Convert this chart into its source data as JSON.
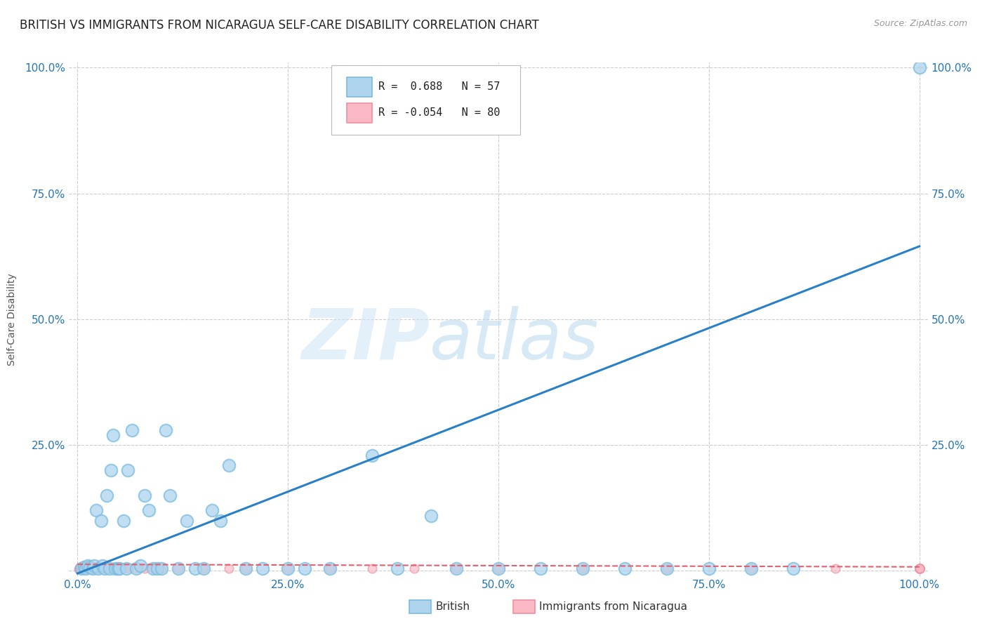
{
  "title": "BRITISH VS IMMIGRANTS FROM NICARAGUA SELF-CARE DISABILITY CORRELATION CHART",
  "source": "Source: ZipAtlas.com",
  "ylabel": "Self-Care Disability",
  "background_color": "#ffffff",
  "legend_r_british": "R =  0.688",
  "legend_n_british": "N = 57",
  "legend_r_nicaragua": "R = -0.054",
  "legend_n_nicaragua": "N = 80",
  "british_color_fill": "#aed4ee",
  "british_color_edge": "#7bbcde",
  "nicaragua_color_fill": "#f9b8c4",
  "nicaragua_color_edge": "#f090a0",
  "line_british_color": "#2980c8",
  "line_nicaragua_color": "#e06070",
  "british_points_x": [
    0.005,
    0.008,
    0.01,
    0.012,
    0.015,
    0.018,
    0.02,
    0.022,
    0.025,
    0.028,
    0.03,
    0.032,
    0.035,
    0.038,
    0.04,
    0.042,
    0.045,
    0.048,
    0.05,
    0.055,
    0.058,
    0.06,
    0.065,
    0.07,
    0.075,
    0.08,
    0.085,
    0.09,
    0.095,
    0.1,
    0.105,
    0.11,
    0.12,
    0.13,
    0.14,
    0.15,
    0.16,
    0.17,
    0.18,
    0.2,
    0.22,
    0.25,
    0.27,
    0.3,
    0.35,
    0.38,
    0.42,
    0.45,
    0.5,
    0.55,
    0.6,
    0.65,
    0.7,
    0.75,
    0.8,
    0.85,
    1.0
  ],
  "british_points_y": [
    0.005,
    0.008,
    0.005,
    0.01,
    0.008,
    0.005,
    0.01,
    0.12,
    0.005,
    0.1,
    0.01,
    0.005,
    0.15,
    0.005,
    0.2,
    0.27,
    0.005,
    0.005,
    0.005,
    0.1,
    0.005,
    0.2,
    0.28,
    0.005,
    0.01,
    0.15,
    0.12,
    0.005,
    0.005,
    0.005,
    0.28,
    0.15,
    0.005,
    0.1,
    0.005,
    0.005,
    0.12,
    0.1,
    0.21,
    0.005,
    0.005,
    0.005,
    0.005,
    0.005,
    0.23,
    0.005,
    0.11,
    0.005,
    0.005,
    0.005,
    0.005,
    0.005,
    0.005,
    0.005,
    0.005,
    0.005,
    1.0
  ],
  "nicaragua_points_x": [
    0.001,
    0.002,
    0.002,
    0.003,
    0.003,
    0.004,
    0.004,
    0.005,
    0.005,
    0.006,
    0.006,
    0.007,
    0.007,
    0.008,
    0.008,
    0.009,
    0.009,
    0.01,
    0.01,
    0.011,
    0.011,
    0.012,
    0.012,
    0.013,
    0.013,
    0.014,
    0.014,
    0.015,
    0.015,
    0.016,
    0.016,
    0.017,
    0.017,
    0.018,
    0.018,
    0.019,
    0.02,
    0.021,
    0.022,
    0.023,
    0.024,
    0.025,
    0.026,
    0.027,
    0.028,
    0.03,
    0.032,
    0.035,
    0.038,
    0.04,
    0.045,
    0.05,
    0.055,
    0.06,
    0.07,
    0.08,
    0.09,
    0.1,
    0.12,
    0.15,
    0.18,
    0.2,
    0.25,
    0.3,
    0.35,
    0.4,
    0.45,
    0.5,
    0.6,
    0.7,
    0.8,
    0.9,
    1.0,
    1.0,
    1.0,
    1.0,
    1.0,
    1.0,
    1.0,
    1.0
  ],
  "nicaragua_points_y": [
    0.004,
    0.005,
    0.006,
    0.004,
    0.007,
    0.005,
    0.006,
    0.004,
    0.007,
    0.005,
    0.006,
    0.004,
    0.007,
    0.005,
    0.006,
    0.004,
    0.007,
    0.005,
    0.006,
    0.004,
    0.007,
    0.005,
    0.006,
    0.004,
    0.007,
    0.005,
    0.006,
    0.004,
    0.007,
    0.005,
    0.006,
    0.004,
    0.007,
    0.005,
    0.006,
    0.004,
    0.005,
    0.005,
    0.005,
    0.005,
    0.005,
    0.005,
    0.005,
    0.005,
    0.005,
    0.005,
    0.005,
    0.005,
    0.005,
    0.005,
    0.005,
    0.005,
    0.005,
    0.005,
    0.005,
    0.005,
    0.005,
    0.005,
    0.005,
    0.005,
    0.005,
    0.005,
    0.005,
    0.005,
    0.005,
    0.005,
    0.005,
    0.005,
    0.005,
    0.005,
    0.005,
    0.005,
    0.005,
    0.005,
    0.005,
    0.005,
    0.005,
    0.005,
    0.005,
    0.005
  ],
  "xlim": [
    -0.01,
    1.01
  ],
  "ylim": [
    -0.01,
    1.01
  ],
  "xticks": [
    0.0,
    0.25,
    0.5,
    0.75,
    1.0
  ],
  "yticks": [
    0.0,
    0.25,
    0.5,
    0.75,
    1.0
  ],
  "xtick_labels": [
    "0.0%",
    "25.0%",
    "50.0%",
    "75.0%",
    "100.0%"
  ],
  "ytick_labels": [
    "",
    "25.0%",
    "50.0%",
    "75.0%",
    "100.0%"
  ],
  "brit_line_x0": 0.0,
  "brit_line_x1": 1.0,
  "brit_line_y0": -0.005,
  "brit_line_y1": 0.645,
  "nic_line_x0": 0.0,
  "nic_line_x1": 1.0,
  "nic_line_y0": 0.013,
  "nic_line_y1": 0.008,
  "title_fontsize": 12,
  "tick_fontsize": 11,
  "ylabel_fontsize": 10
}
